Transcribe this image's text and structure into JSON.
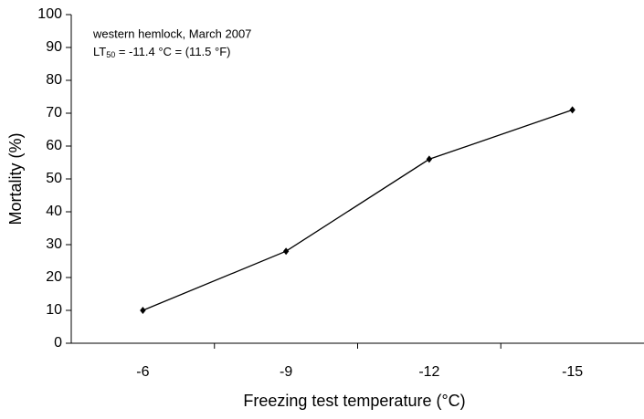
{
  "chart_data": {
    "type": "line",
    "categories": [
      "-6",
      "-9",
      "-12",
      "-15"
    ],
    "values": [
      10,
      28,
      56,
      71
    ],
    "color": "#000000",
    "ylim": [
      0,
      100
    ],
    "yticks": [
      0,
      10,
      20,
      30,
      40,
      50,
      60,
      70,
      80,
      90,
      100
    ],
    "x_label": "Freezing test temperature (°C)",
    "y_label": "Mortality (%)",
    "annotation": "western hemlock, March 2007",
    "lt50": {
      "base": "LT",
      "subscript": "50",
      "rest": " = -11.4 °C = (11.5 °F)"
    }
  }
}
